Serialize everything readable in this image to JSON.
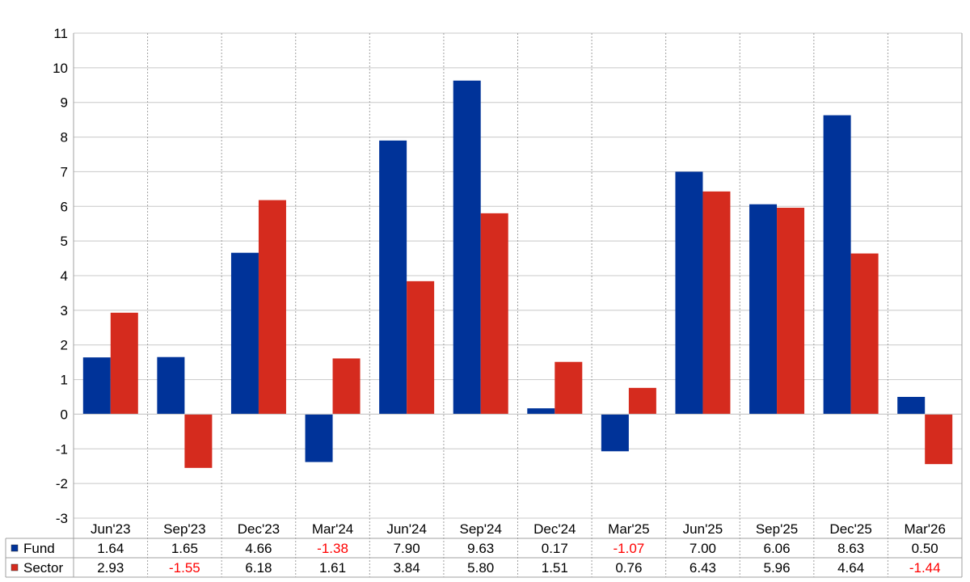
{
  "chart_data": {
    "type": "bar",
    "categories": [
      "Jun'23",
      "Sep'23",
      "Dec'23",
      "Mar'24",
      "Jun'24",
      "Sep'24",
      "Dec'24",
      "Mar'25",
      "Jun'25",
      "Sep'25",
      "Dec'25",
      "Mar'26"
    ],
    "series": [
      {
        "name": "Fund",
        "color": "#003399",
        "values": [
          1.64,
          1.65,
          4.66,
          -1.38,
          7.9,
          9.63,
          0.17,
          -1.07,
          7.0,
          6.06,
          8.63,
          0.5
        ]
      },
      {
        "name": "Sector",
        "color": "#d52b1e",
        "values": [
          2.93,
          -1.55,
          6.18,
          1.61,
          3.84,
          5.8,
          1.51,
          0.76,
          6.43,
          5.96,
          4.64,
          -1.44
        ]
      }
    ],
    "series_labels": {
      "Fund": [
        "1.64",
        "1.65",
        "4.66",
        "-1.38",
        "7.90",
        "9.63",
        "0.17",
        "-1.07",
        "7.00",
        "6.06",
        "8.63",
        "0.50"
      ],
      "Sector": [
        "2.93",
        "-1.55",
        "6.18",
        "1.61",
        "3.84",
        "5.80",
        "1.51",
        "0.76",
        "6.43",
        "5.96",
        "4.64",
        "-1.44"
      ]
    },
    "yticks": [
      "-3",
      "-2",
      "-1",
      "0",
      "1",
      "2",
      "3",
      "4",
      "5",
      "6",
      "7",
      "8",
      "9",
      "10",
      "11"
    ],
    "ylim": [
      -3,
      11
    ],
    "grid": true,
    "legend": "data table below the plot",
    "negative_color": "#ff0000"
  }
}
